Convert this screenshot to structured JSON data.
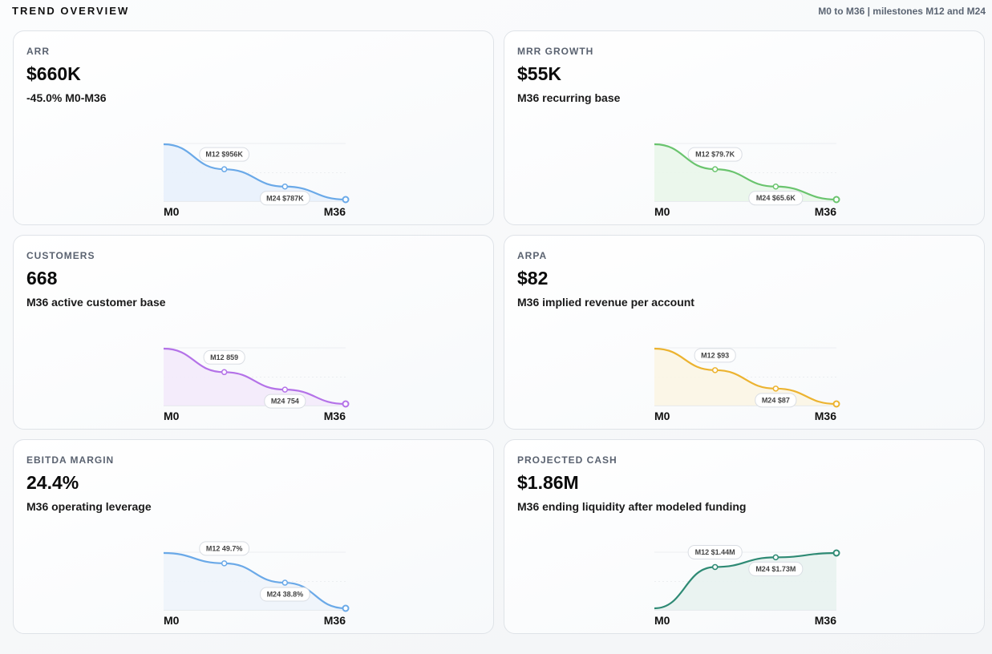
{
  "header": {
    "title": "TREND OVERVIEW",
    "subtitle": "M0 to M36 | milestones M12 and M24"
  },
  "cards": [
    {
      "label": "ARR",
      "value": "$660K",
      "note": "-45.0% M0-M36",
      "color": "#6aa9e8",
      "fill": "#e8f1fc",
      "chart_data": {
        "type": "area",
        "x": [
          "M0",
          "M12",
          "M24",
          "M36"
        ],
        "values": [
          1200,
          956,
          787,
          660
        ],
        "x_start_label": "M0",
        "x_end_label": "M36",
        "milestones": [
          {
            "label": "M12 $956K"
          },
          {
            "label": "M24 $787K"
          }
        ]
      }
    },
    {
      "label": "MRR GROWTH",
      "value": "$55K",
      "note": "M36 recurring base",
      "color": "#6ac46e",
      "fill": "#e9f6ea",
      "chart_data": {
        "type": "area",
        "x": [
          "M0",
          "M12",
          "M24",
          "M36"
        ],
        "values": [
          100,
          79.7,
          65.6,
          55
        ],
        "x_start_label": "M0",
        "x_end_label": "M36",
        "milestones": [
          {
            "label": "M12 $79.7K"
          },
          {
            "label": "M24 $65.6K"
          }
        ]
      }
    },
    {
      "label": "CUSTOMERS",
      "value": "668",
      "note": "M36 active customer base",
      "color": "#b472e8",
      "fill": "#f3eafb",
      "chart_data": {
        "type": "area",
        "x": [
          "M0",
          "M12",
          "M24",
          "M36"
        ],
        "values": [
          1000,
          859,
          754,
          668
        ],
        "x_start_label": "M0",
        "x_end_label": "M36",
        "milestones": [
          {
            "label": "M12 859"
          },
          {
            "label": "M24 754"
          }
        ]
      }
    },
    {
      "label": "ARPA",
      "value": "$82",
      "note": "M36 implied revenue per account",
      "color": "#ecb330",
      "fill": "#fbf5e4",
      "chart_data": {
        "type": "area",
        "x": [
          "M0",
          "M12",
          "M24",
          "M36"
        ],
        "values": [
          100,
          93,
          87,
          82
        ],
        "x_start_label": "M0",
        "x_end_label": "M36",
        "milestones": [
          {
            "label": "M12 $93"
          },
          {
            "label": "M24 $87"
          }
        ]
      }
    },
    {
      "label": "EBITDA MARGIN",
      "value": "24.4%",
      "note": "M36 operating leverage",
      "color": "#6aa9e8",
      "fill": "#eef4fb",
      "chart_data": {
        "type": "area",
        "x": [
          "M0",
          "M12",
          "M24",
          "M36"
        ],
        "values": [
          55.5,
          49.7,
          38.8,
          24.4
        ],
        "x_start_label": "M0",
        "x_end_label": "M36",
        "milestones": [
          {
            "label": "M12 49.7%"
          },
          {
            "label": "M24 38.8%"
          }
        ]
      }
    },
    {
      "label": "PROJECTED CASH",
      "value": "$1.86M",
      "note": "M36 ending liquidity after modeled funding",
      "color": "#2e8a74",
      "fill": "#e8f2ef",
      "chart_data": {
        "type": "area",
        "x": [
          "M0",
          "M12",
          "M24",
          "M36"
        ],
        "values": [
          0.2,
          1.44,
          1.73,
          1.86
        ],
        "x_start_label": "M0",
        "x_end_label": "M36",
        "milestones": [
          {
            "label": "M12 $1.44M"
          },
          {
            "label": "M24 $1.73M"
          }
        ]
      }
    }
  ]
}
